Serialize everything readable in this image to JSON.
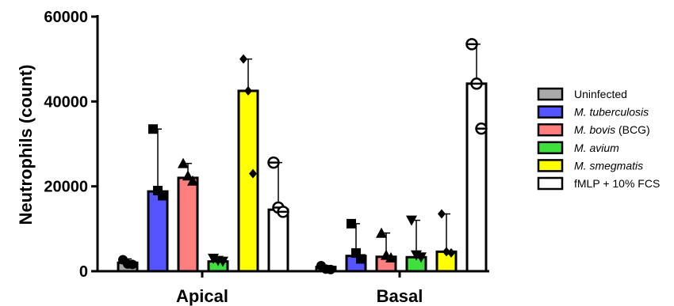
{
  "chart_data": {
    "type": "bar",
    "ylabel": "Neutrophils (count)",
    "xlabel": "",
    "ylim": [
      0,
      60000
    ],
    "yticks": [
      "0",
      "20000",
      "40000",
      "60000"
    ],
    "categories": [
      "Apical",
      "Basal"
    ],
    "series": [
      {
        "name": "Uninfected",
        "name_parts": [
          {
            "text": "Uninfected",
            "italic": false
          }
        ],
        "color": "#a9a9a9",
        "marker": "circle-filled",
        "values": [
          2000,
          1000
        ],
        "error_high": [
          2900,
          1300
        ],
        "points": [
          [
            2700,
            1700,
            1600
          ],
          [
            1300,
            500,
            400
          ]
        ]
      },
      {
        "name": "M. tuberculosis",
        "name_parts": [
          {
            "text": "M. tuberculosis",
            "italic": true
          }
        ],
        "color": "#5555ff",
        "marker": "square",
        "values": [
          18800,
          3600
        ],
        "error_high": [
          33500,
          11200
        ],
        "points": [
          [
            33500,
            19000,
            17800
          ],
          [
            11200,
            4300,
            2900
          ]
        ]
      },
      {
        "name": "M. bovis (BCG)",
        "name_parts": [
          {
            "text": "M. bovis",
            "italic": true
          },
          {
            "text": " (BCG)",
            "italic": false
          }
        ],
        "color": "#ff7f7f",
        "marker": "triangle-up",
        "values": [
          22000,
          3400
        ],
        "error_high": [
          25400,
          9000
        ],
        "points": [
          [
            25400,
            22500,
            21300
          ],
          [
            9000,
            3800,
            3200
          ]
        ]
      },
      {
        "name": "M. avium",
        "name_parts": [
          {
            "text": "M. avium",
            "italic": true
          }
        ],
        "color": "#3de03d",
        "marker": "triangle-down",
        "values": [
          2300,
          3300
        ],
        "error_high": [
          3000,
          12000
        ],
        "points": [
          [
            3000,
            2500,
            2300
          ],
          [
            12000,
            3800,
            3300
          ]
        ]
      },
      {
        "name": "M. smegmatis",
        "name_parts": [
          {
            "text": "M. smegmatis",
            "italic": true
          }
        ],
        "color": "#ffff00",
        "marker": "diamond",
        "values": [
          42500,
          4600
        ],
        "error_high": [
          50000,
          13500
        ],
        "points": [
          [
            50000,
            42500,
            23000
          ],
          [
            13500,
            4600,
            4300
          ]
        ]
      },
      {
        "name": "fMLP + 10% FCS",
        "name_parts": [
          {
            "text": "fMLP + 10% FCS",
            "italic": false
          }
        ],
        "color": "#ffffff",
        "marker": "circle-open",
        "values": [
          14500,
          44200
        ],
        "error_high": [
          25600,
          53500
        ],
        "points": [
          [
            25600,
            15000,
            14000
          ],
          [
            53500,
            44200,
            33600
          ]
        ]
      }
    ],
    "grid": false,
    "legend": "right"
  }
}
